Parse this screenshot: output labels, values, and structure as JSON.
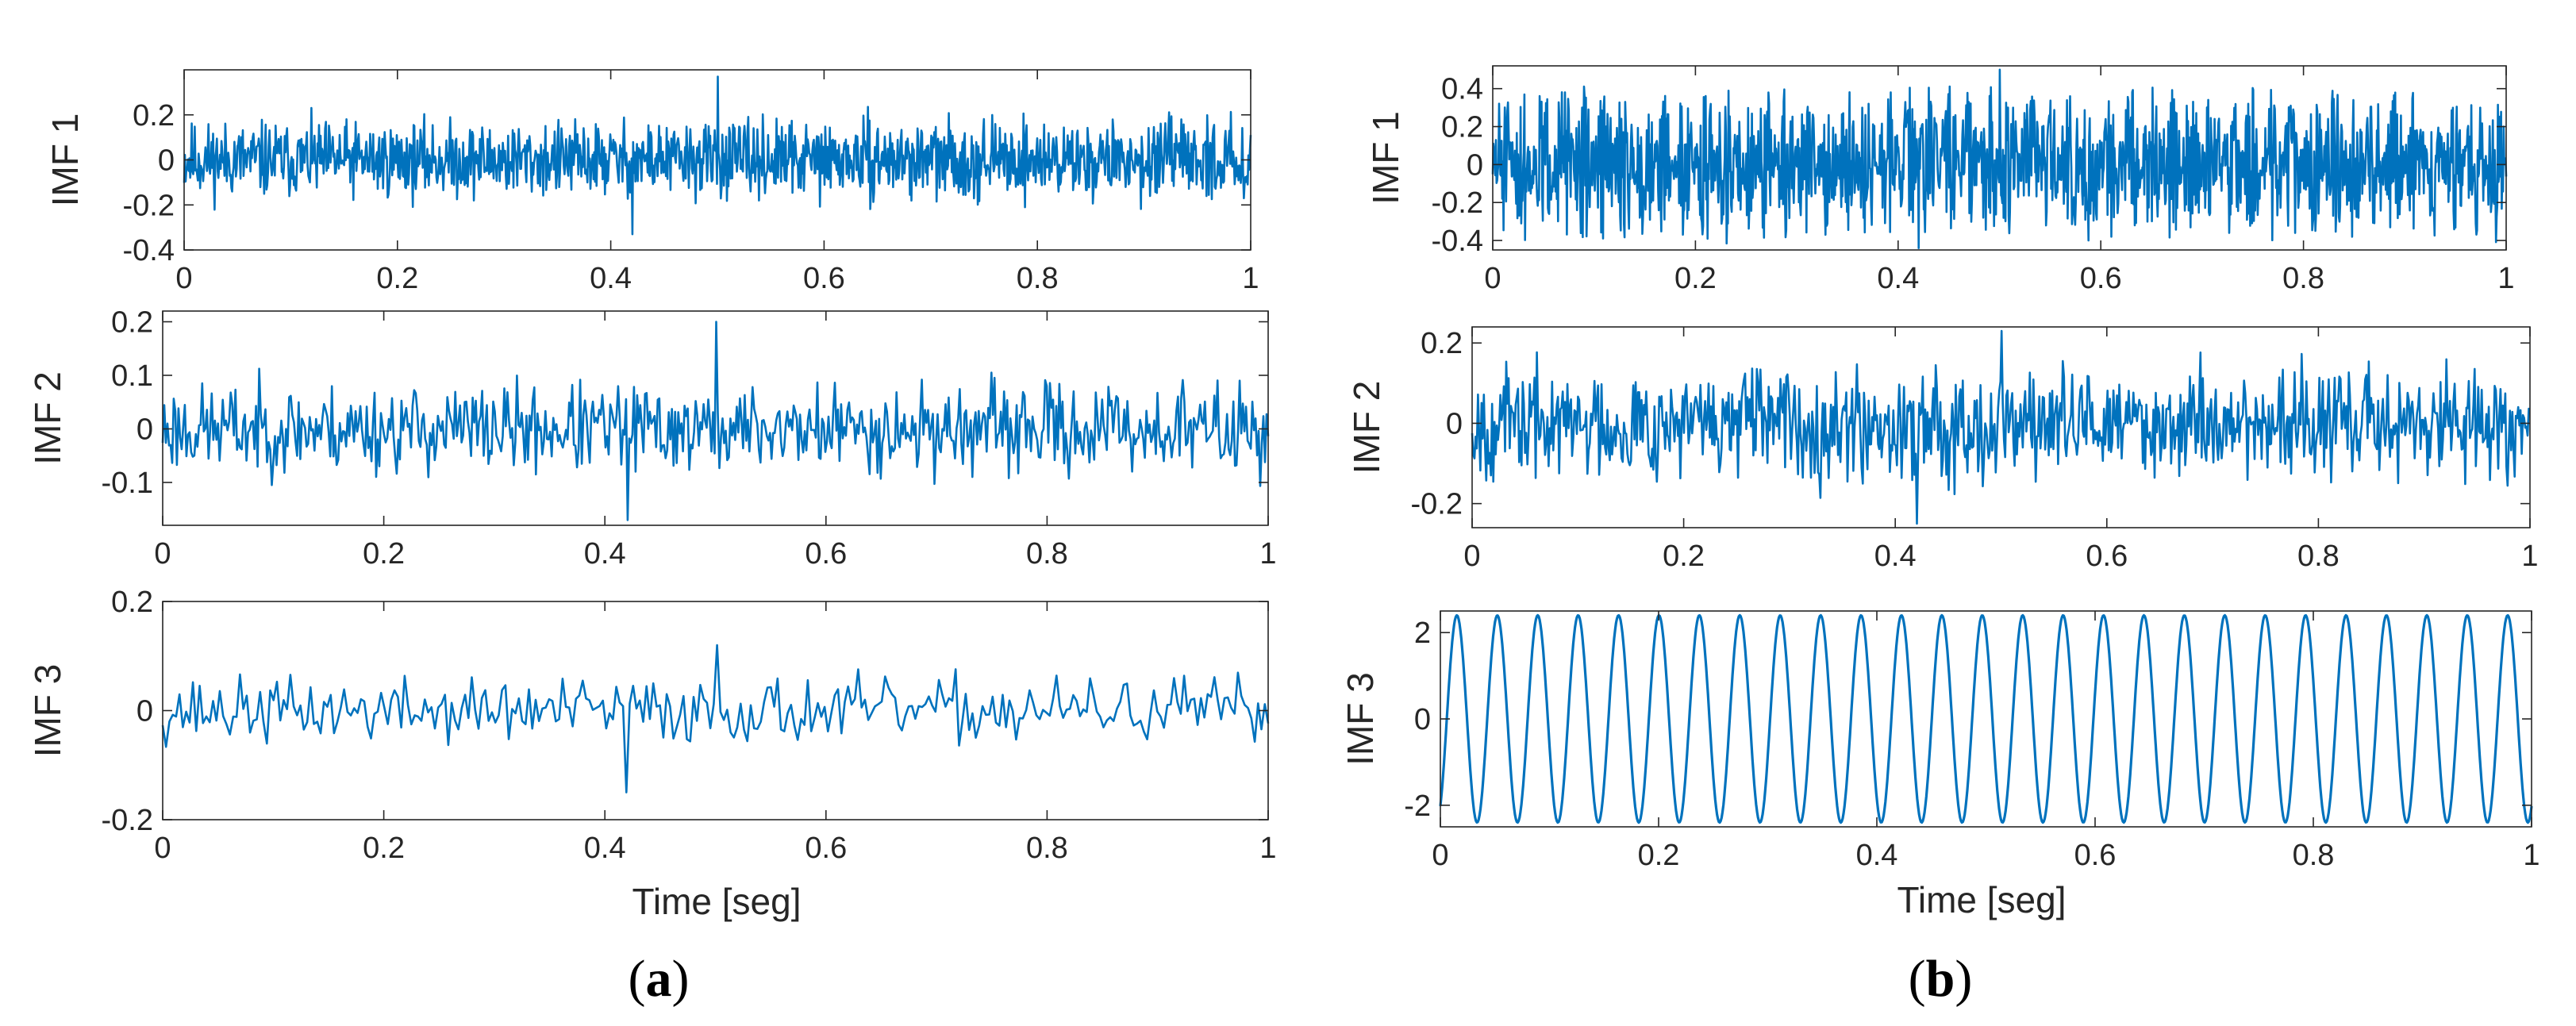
{
  "colors": {
    "signal": "#0072BD",
    "axes": "#262626",
    "background": "#ffffff"
  },
  "panels": [
    {
      "caption_open": "(",
      "caption_letter": "a",
      "caption_close": ")",
      "xlabel": "Time [seg]"
    },
    {
      "caption_open": "(",
      "caption_letter": "b",
      "caption_close": ")",
      "xlabel": "Time [seg]"
    }
  ],
  "chart_data": [
    {
      "type": "line",
      "panel": "a",
      "ylabel": "IMF 1",
      "xlabel": "",
      "xlim": [
        0,
        1
      ],
      "ylim": [
        -0.4,
        0.4
      ],
      "xticks": [
        0,
        0.2,
        0.4,
        0.6,
        0.8,
        1
      ],
      "xtick_labels": [
        "0",
        "0.2",
        "0.4",
        "0.6",
        "0.8",
        "1"
      ],
      "yticks": [
        -0.4,
        -0.2,
        0,
        0.2
      ],
      "ytick_labels": [
        "-0.4",
        "-0.2",
        "0",
        "0.2"
      ],
      "signal": {
        "kind": "noise",
        "points": 1400,
        "amplitude": 0.11,
        "peak": 0.37,
        "trough": -0.33,
        "seed": 11
      }
    },
    {
      "type": "line",
      "panel": "a",
      "ylabel": "IMF 2",
      "xlabel": "",
      "xlim": [
        0,
        1
      ],
      "ylim": [
        -0.18,
        0.22
      ],
      "xticks": [
        0,
        0.2,
        0.4,
        0.6,
        0.8,
        1
      ],
      "xtick_labels": [
        "0",
        "0.2",
        "0.4",
        "0.6",
        "0.8",
        "1"
      ],
      "yticks": [
        -0.1,
        0,
        0.1,
        0.2
      ],
      "ytick_labels": [
        "-0.1",
        "0",
        "0.1",
        "0.2"
      ],
      "signal": {
        "kind": "noise",
        "points": 700,
        "amplitude": 0.055,
        "peak": 0.2,
        "trough": -0.17,
        "seed": 23
      }
    },
    {
      "type": "line",
      "panel": "a",
      "ylabel": "IMF 3",
      "xlabel": "Time [seg]",
      "xlim": [
        0,
        1
      ],
      "ylim": [
        -0.2,
        0.2
      ],
      "xticks": [
        0,
        0.2,
        0.4,
        0.6,
        0.8,
        1
      ],
      "xtick_labels": [
        "0",
        "0.2",
        "0.4",
        "0.6",
        "0.8",
        "1"
      ],
      "yticks": [
        -0.2,
        0,
        0.2
      ],
      "ytick_labels": [
        "-0.2",
        "0",
        "0.2"
      ],
      "signal": {
        "kind": "noise",
        "points": 330,
        "amplitude": 0.04,
        "peak": 0.12,
        "trough": -0.15,
        "seed": 37
      }
    },
    {
      "type": "line",
      "panel": "b",
      "ylabel": "IMF 1",
      "xlabel": "",
      "xlim": [
        0,
        1
      ],
      "ylim": [
        -0.45,
        0.52
      ],
      "xticks": [
        0,
        0.2,
        0.4,
        0.6,
        0.8,
        1
      ],
      "xtick_labels": [
        "0",
        "0.2",
        "0.4",
        "0.6",
        "0.8",
        "1"
      ],
      "yticks": [
        -0.4,
        -0.2,
        0,
        0.2,
        0.4
      ],
      "ytick_labels": [
        "-0.4",
        "-0.2",
        "0",
        "0.2",
        "0.4"
      ],
      "signal": {
        "kind": "modulated",
        "points": 1600,
        "amplitude": 0.42,
        "envelope_cycles": 50,
        "peak": 0.5,
        "trough": -0.44,
        "seed": 51
      }
    },
    {
      "type": "line",
      "panel": "b",
      "ylabel": "IMF 2",
      "xlabel": "",
      "xlim": [
        0,
        1
      ],
      "ylim": [
        -0.26,
        0.24
      ],
      "xticks": [
        0,
        0.2,
        0.4,
        0.6,
        0.8,
        1
      ],
      "xtick_labels": [
        "0",
        "0.2",
        "0.4",
        "0.6",
        "0.8",
        "1"
      ],
      "yticks": [
        -0.2,
        0,
        0.2
      ],
      "ytick_labels": [
        "-0.2",
        "0",
        "0.2"
      ],
      "signal": {
        "kind": "noise",
        "points": 900,
        "amplitude": 0.09,
        "peak": 0.23,
        "trough": -0.25,
        "seed": 67
      }
    },
    {
      "type": "line",
      "panel": "b",
      "ylabel": "IMF 3",
      "xlabel": "Time [seg]",
      "xlim": [
        0,
        1
      ],
      "ylim": [
        -2.5,
        2.5
      ],
      "xticks": [
        0,
        0.2,
        0.4,
        0.6,
        0.8,
        1
      ],
      "xtick_labels": [
        "0",
        "0.2",
        "0.4",
        "0.6",
        "0.8",
        "1"
      ],
      "yticks": [
        -2,
        0,
        2
      ],
      "ytick_labels": [
        "-2",
        "0",
        "2"
      ],
      "signal": {
        "kind": "sine",
        "points": 1200,
        "amplitude": 2.4,
        "cycles": 27,
        "phase": -1.0
      }
    }
  ]
}
